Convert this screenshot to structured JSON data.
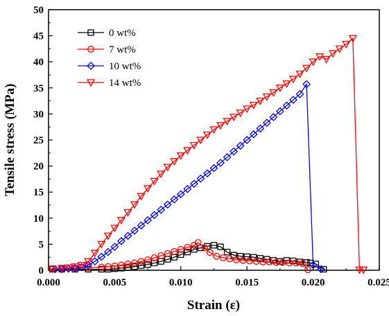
{
  "chart_data": {
    "type": "line",
    "xlabel": "Strain (ε)",
    "ylabel": "Tensile stress (MPa)",
    "xlim": [
      0,
      0.025
    ],
    "ylim": [
      0,
      50
    ],
    "xticks": [
      "0.000",
      "0.005",
      "0.010",
      "0.015",
      "0.020",
      "0.025"
    ],
    "yticks": [
      "0",
      "5",
      "10",
      "15",
      "20",
      "25",
      "30",
      "35",
      "40",
      "45",
      "50"
    ],
    "grid": false,
    "legend_position": "top-left",
    "series": [
      {
        "name": "0 wt%",
        "color": "#000000",
        "marker": "square",
        "x": [
          0.0003,
          0.001,
          0.002,
          0.003,
          0.004,
          0.0045,
          0.005,
          0.0055,
          0.006,
          0.0065,
          0.007,
          0.0075,
          0.008,
          0.0085,
          0.009,
          0.0095,
          0.01,
          0.0105,
          0.011,
          0.0115,
          0.012,
          0.0125,
          0.013,
          0.0135,
          0.014,
          0.0145,
          0.015,
          0.0155,
          0.016,
          0.0165,
          0.017,
          0.0175,
          0.018,
          0.0185,
          0.019,
          0.0195,
          0.0198,
          0.0202,
          0.0208
        ],
        "y": [
          0.2,
          0.2,
          0.2,
          0.2,
          0.2,
          0.2,
          0.3,
          0.4,
          0.5,
          0.7,
          0.9,
          1.1,
          1.4,
          1.7,
          2.1,
          2.5,
          3.0,
          3.5,
          4.0,
          4.3,
          4.6,
          4.8,
          4.5,
          3.5,
          2.9,
          2.7,
          2.6,
          2.5,
          2.3,
          2.1,
          1.9,
          1.7,
          1.9,
          1.8,
          1.6,
          1.5,
          1.4,
          1.2,
          0.2
        ]
      },
      {
        "name": "7 wt%",
        "color": "#ff0000",
        "marker": "circle",
        "x": [
          0.0003,
          0.001,
          0.002,
          0.003,
          0.004,
          0.0045,
          0.005,
          0.0055,
          0.006,
          0.0065,
          0.007,
          0.0075,
          0.008,
          0.0085,
          0.009,
          0.0095,
          0.01,
          0.0105,
          0.011,
          0.0113,
          0.0118,
          0.0122,
          0.0127,
          0.0132,
          0.0137,
          0.0142,
          0.0147,
          0.0152,
          0.0157,
          0.0162,
          0.0167,
          0.0172,
          0.0177,
          0.0182,
          0.0187,
          0.0192,
          0.0196
        ],
        "y": [
          0.3,
          0.3,
          0.4,
          0.5,
          0.6,
          0.7,
          0.8,
          1.0,
          1.2,
          1.4,
          1.7,
          2.0,
          2.4,
          2.8,
          3.2,
          3.6,
          4.0,
          4.4,
          4.8,
          5.3,
          4.3,
          3.4,
          2.7,
          2.4,
          2.2,
          2.0,
          1.9,
          1.8,
          1.7,
          1.6,
          1.6,
          1.5,
          1.5,
          1.4,
          1.4,
          1.3,
          0.1
        ]
      },
      {
        "name": "10 wt%",
        "color": "#0000ff",
        "marker": "diamond",
        "x": [
          0.0005,
          0.001,
          0.0015,
          0.002,
          0.0025,
          0.003,
          0.0035,
          0.004,
          0.0045,
          0.005,
          0.0055,
          0.006,
          0.0065,
          0.007,
          0.0075,
          0.008,
          0.0085,
          0.009,
          0.0095,
          0.01,
          0.0105,
          0.011,
          0.0115,
          0.012,
          0.0125,
          0.013,
          0.0135,
          0.014,
          0.0145,
          0.015,
          0.0155,
          0.016,
          0.0165,
          0.017,
          0.0175,
          0.018,
          0.0185,
          0.019,
          0.0195,
          0.02,
          0.0206
        ],
        "y": [
          0.2,
          0.2,
          0.3,
          0.4,
          0.6,
          1.0,
          1.7,
          2.6,
          3.5,
          4.5,
          5.6,
          6.6,
          7.6,
          8.6,
          9.6,
          10.6,
          11.6,
          12.6,
          13.6,
          14.6,
          15.6,
          16.6,
          17.6,
          18.6,
          19.6,
          20.6,
          21.7,
          22.8,
          23.9,
          25.0,
          26.1,
          27.2,
          28.3,
          29.4,
          30.5,
          31.6,
          32.7,
          33.8,
          35.7,
          1.0,
          0.2
        ]
      },
      {
        "name": "14 wt%",
        "color": "#ff0000",
        "marker": "triangle-down",
        "x": [
          0.0003,
          0.001,
          0.0015,
          0.002,
          0.0025,
          0.003,
          0.0035,
          0.004,
          0.0045,
          0.005,
          0.0055,
          0.006,
          0.0065,
          0.007,
          0.0075,
          0.008,
          0.0085,
          0.009,
          0.0095,
          0.01,
          0.0105,
          0.011,
          0.0115,
          0.012,
          0.0125,
          0.013,
          0.0135,
          0.014,
          0.0145,
          0.015,
          0.0155,
          0.016,
          0.0165,
          0.017,
          0.0175,
          0.018,
          0.0185,
          0.019,
          0.0195,
          0.02,
          0.0205,
          0.021,
          0.0215,
          0.022,
          0.0225,
          0.023,
          0.0235,
          0.0238
        ],
        "y": [
          0.3,
          0.4,
          0.5,
          0.7,
          1.0,
          1.7,
          3.3,
          5.0,
          6.6,
          8.1,
          9.6,
          11.1,
          12.6,
          14.2,
          15.7,
          17.1,
          18.5,
          19.8,
          20.9,
          22.0,
          23.0,
          24.0,
          25.0,
          26.0,
          27.0,
          27.8,
          28.6,
          29.4,
          30.2,
          31.0,
          31.7,
          32.5,
          33.3,
          34.1,
          35.0,
          35.8,
          36.7,
          37.7,
          38.8,
          40.0,
          41.0,
          40.5,
          41.6,
          42.5,
          43.4,
          44.5,
          0.1,
          0.1
        ]
      }
    ]
  }
}
